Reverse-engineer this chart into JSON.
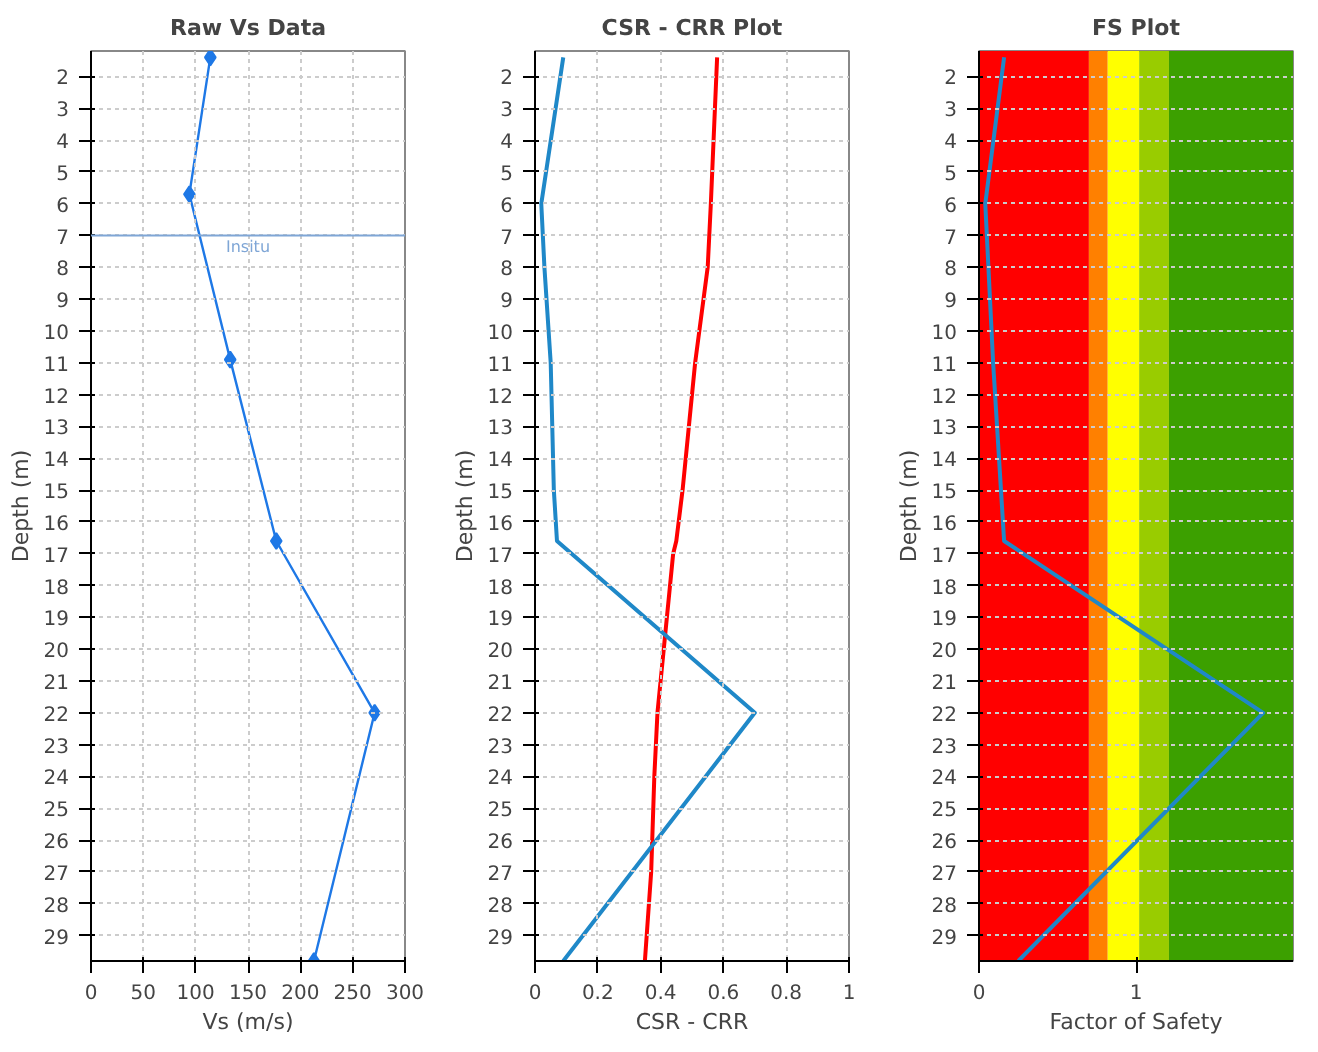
{
  "chart_data": [
    {
      "type": "line",
      "orientation": "horizontal",
      "title": "Raw Vs Data",
      "xlabel": "Vs (m/s)",
      "ylabel": "Depth (m)",
      "x": [
        1.4,
        5.7,
        10.9,
        16.6,
        22.0,
        29.8
      ],
      "marker": "diamond",
      "grid": true,
      "xlim": [
        0,
        300
      ],
      "xticks": [
        0,
        50,
        100,
        150,
        200,
        250,
        300
      ],
      "ylim": [
        29.8,
        1.2
      ],
      "yticks": [
        2,
        3,
        4,
        5,
        6,
        7,
        8,
        9,
        10,
        11,
        12,
        13,
        14,
        15,
        16,
        17,
        18,
        19,
        20,
        21,
        22,
        23,
        24,
        25,
        26,
        27,
        28,
        29
      ],
      "series": [
        {
          "color": "#1e78e6",
          "values": [
            114,
            94,
            133,
            177,
            271,
            213
          ]
        }
      ],
      "ref_lines": [
        {
          "axis": "y",
          "value": 7,
          "label": "Insitu",
          "color": "#7fa6d6"
        }
      ]
    },
    {
      "type": "line",
      "orientation": "horizontal",
      "title": "CSR - CRR Plot",
      "xlabel": "CSR - CRR",
      "ylabel": "Depth (m)",
      "x": [
        1.4,
        6,
        8,
        11,
        15,
        16.6,
        17,
        20,
        22,
        24,
        27,
        29.8
      ],
      "grid": true,
      "xlim": [
        0,
        1
      ],
      "xticks": [
        0,
        0.2,
        0.4,
        0.6,
        0.8,
        1
      ],
      "ylim": [
        29.8,
        1.2
      ],
      "yticks": [
        2,
        3,
        4,
        5,
        6,
        7,
        8,
        9,
        10,
        11,
        12,
        13,
        14,
        15,
        16,
        17,
        18,
        19,
        20,
        21,
        22,
        23,
        24,
        25,
        26,
        27,
        28,
        29
      ],
      "series": [
        {
          "color": "#ff0000",
          "values": [
            0.58,
            0.56,
            0.55,
            0.51,
            0.47,
            0.45,
            0.44,
            0.41,
            0.39,
            0.38,
            0.37,
            0.35
          ]
        },
        {
          "color": "#1f88c8",
          "x": [
            1.4,
            6,
            8,
            11,
            15,
            16.6,
            22,
            29.8
          ],
          "values": [
            0.09,
            0.02,
            0.03,
            0.05,
            0.06,
            0.07,
            0.7,
            0.09
          ]
        }
      ]
    },
    {
      "type": "line",
      "orientation": "horizontal",
      "title": "FS Plot",
      "xlabel": "Factor of Safety",
      "ylabel": "Depth (m)",
      "x": [
        1.4,
        6,
        8,
        11,
        16.6,
        22,
        29.8
      ],
      "grid": "y",
      "xlim": [
        0,
        2
      ],
      "xticks": [
        0,
        1
      ],
      "ylim": [
        29.8,
        1.2
      ],
      "yticks": [
        2,
        3,
        4,
        5,
        6,
        7,
        8,
        9,
        10,
        11,
        12,
        13,
        14,
        15,
        16,
        17,
        18,
        19,
        20,
        21,
        22,
        23,
        24,
        25,
        26,
        27,
        28,
        29
      ],
      "series": [
        {
          "color": "#1f88c8",
          "values": [
            0.16,
            0.04,
            0.06,
            0.09,
            0.16,
            1.81,
            0.25
          ]
        }
      ],
      "bands": [
        {
          "axis": "x",
          "from": 0,
          "to": 0.7,
          "color": "#ff0000"
        },
        {
          "axis": "x",
          "from": 0.7,
          "to": 0.82,
          "color": "#ff8000"
        },
        {
          "axis": "x",
          "from": 0.82,
          "to": 1.02,
          "color": "#ffff00"
        },
        {
          "axis": "x",
          "from": 1.02,
          "to": 1.21,
          "color": "#99cc00"
        },
        {
          "axis": "x",
          "from": 1.21,
          "to": 2,
          "color": "#3ca000"
        }
      ]
    }
  ]
}
